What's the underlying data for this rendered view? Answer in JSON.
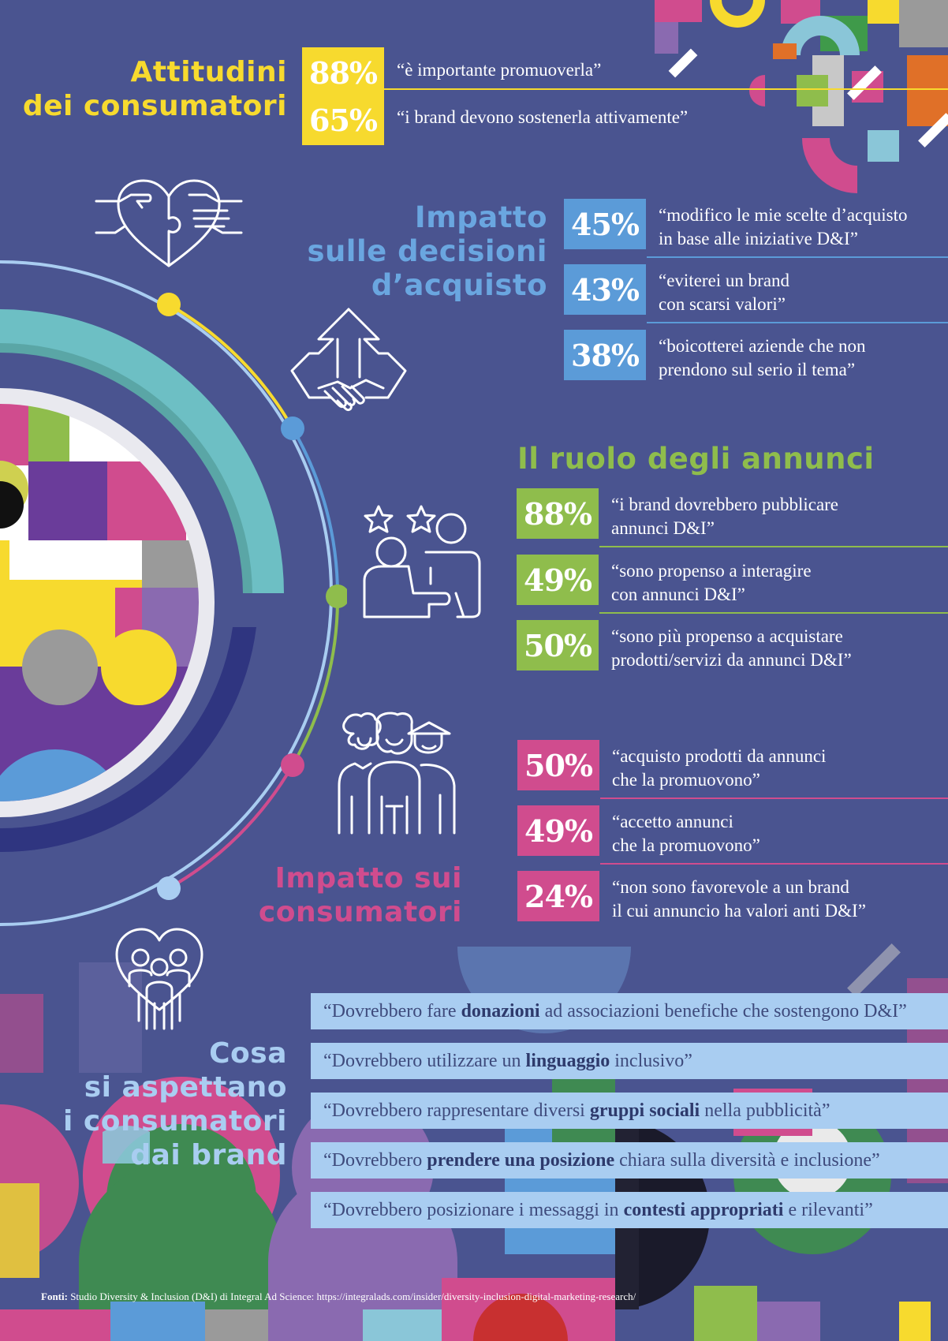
{
  "colors": {
    "background": "#4a5490",
    "yellow": "#f7da2e",
    "blue": "#5b9bd8",
    "green": "#8fbd4c",
    "pink": "#d04c8e",
    "light_blue": "#a9cdf1"
  },
  "attitudes": {
    "title_line1": "Attitudini",
    "title_line2": "dei consumatori",
    "stats": [
      {
        "value": "88%",
        "quote": "“è importante promuoverla”"
      },
      {
        "value": "65%",
        "quote": "“i brand devono sostenerla attivamente”"
      }
    ]
  },
  "impact_decisions": {
    "title_line1": "Impatto",
    "title_line2": "sulle decisioni",
    "title_line3": "d’acquisto",
    "icon": "puzzle-heart-hands-icon",
    "stats": [
      {
        "value": "45%",
        "quote_line1": "“modifico le mie scelte d’acquisto",
        "quote_line2": "in base alle iniziative D&I”"
      },
      {
        "value": "43%",
        "quote_line1": "“eviterei un brand",
        "quote_line2": "con scarsi valori”"
      },
      {
        "value": "38%",
        "quote_line1": "“boicotterei aziende che non",
        "quote_line2": "prendono sul serio il tema”"
      }
    ]
  },
  "ads_role": {
    "title": "Il ruolo degli annunci",
    "icon": "handshake-arrows-icon",
    "stats": [
      {
        "value": "88%",
        "quote_line1": "“i brand dovrebbero pubblicare",
        "quote_line2": "annunci D&I”"
      },
      {
        "value": "49%",
        "quote_line1": "“sono propenso a interagire",
        "quote_line2": "con annunci D&I”"
      },
      {
        "value": "50%",
        "quote_line1": "“sono più propenso a acquistare",
        "quote_line2": "prodotti/servizi da annunci D&I”"
      }
    ]
  },
  "impact_consumers": {
    "title_line1": "Impatto sui",
    "title_line2": "consumatori",
    "icon": "diverse-people-icon",
    "stats": [
      {
        "value": "50%",
        "quote_line1": "“acquisto prodotti da annunci",
        "quote_line2": "che la promuovono”"
      },
      {
        "value": "49%",
        "quote_line1": "“accetto annunci",
        "quote_line2": "che la promuovono”"
      },
      {
        "value": "24%",
        "quote_line1": "“non sono favorevole a un brand",
        "quote_line2": "il cui annuncio ha valori anti D&I”"
      }
    ]
  },
  "expectations": {
    "title_line1": "Cosa",
    "title_line2": "si aspettano",
    "title_line3": "i consumatori",
    "title_line4": "dai brand",
    "icon": "heart-family-icon",
    "items": [
      {
        "pre": "“Dovrebbero fare ",
        "bold": "donazioni",
        "post": " ad associazioni benefiche che sostengono D&I”"
      },
      {
        "pre": "“Dovrebbero utilizzare un ",
        "bold": "linguaggio",
        "post": " inclusivo”"
      },
      {
        "pre": "“Dovrebbero rappresentare diversi ",
        "bold": "gruppi sociali",
        "post": " nella pubblicità”"
      },
      {
        "pre": "“Dovrebbero ",
        "bold": "prendere una posizione",
        "post": " chiara sulla diversità e inclusione”"
      },
      {
        "pre": "“Dovrebbero posizionare i messaggi in ",
        "bold": "contesti appropriati",
        "post": " e rilevanti”"
      }
    ]
  },
  "source": {
    "label": "Fonti:",
    "text": " Studio Diversity & Inclusion (D&I) di Integral Ad Science: https://integralads.com/insider/diversity-inclusion-digital-marketing-research/"
  }
}
